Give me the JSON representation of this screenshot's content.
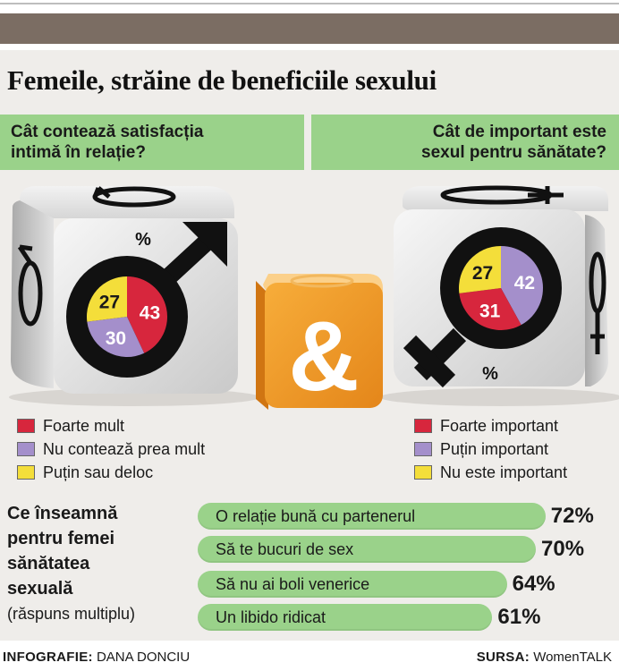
{
  "title": "Femeile, străine de beneficiile sexului",
  "questions": {
    "left": "Cât contează satisfacția\nintimă în relație?",
    "right": "Cât de important este\nsexul pentru sănătate?"
  },
  "chart_data": [
    {
      "type": "pie",
      "title": "Cât contează satisfacția intimă în relație?",
      "unit_label": "%",
      "slices": [
        {
          "label": "Foarte mult",
          "value": 43,
          "color": "#d7263d"
        },
        {
          "label": "Nu contează prea mult",
          "value": 30,
          "color": "#a48fcb"
        },
        {
          "label": "Puțin sau deloc",
          "value": 27,
          "color": "#f4de3a"
        }
      ]
    },
    {
      "type": "pie",
      "title": "Cât de important este sexul pentru sănătate?",
      "unit_label": "%",
      "slices": [
        {
          "label": "Foarte important",
          "value": 31,
          "color": "#d7263d"
        },
        {
          "label": "Puțin important",
          "value": 42,
          "color": "#a48fcb"
        },
        {
          "label": "Nu este important",
          "value": 27,
          "color": "#f4de3a"
        }
      ]
    },
    {
      "type": "bar",
      "title": "Ce înseamnă pentru femei sănătatea sexuală",
      "subtitle": "(răspuns multiplu)",
      "categories": [
        "O relație bună cu partenerul",
        "Să te bucuri de sex",
        "Să nu ai boli venerice",
        "Un libido ridicat"
      ],
      "values": [
        72,
        70,
        64,
        61
      ],
      "value_labels": [
        "72%",
        "70%",
        "64%",
        "61%"
      ],
      "color": "#9ad28a"
    }
  ],
  "center_symbol": "&",
  "bottom": {
    "question": "Ce înseamnă\npentru femei\nsănătatea\nsexuală",
    "subtitle": "(răspuns multiplu)"
  },
  "footer": {
    "credit_label": "INFOGRAFIE:",
    "credit_name": "DANA DONCIU",
    "source_label": "SURSA:",
    "source_name": "WomenTALK"
  },
  "colors": {
    "green": "#9ad28a",
    "red": "#d7263d",
    "purple": "#a48fcb",
    "yellow": "#f4de3a",
    "orange": "#f39a24",
    "brown_bar": "#7b6d63"
  }
}
